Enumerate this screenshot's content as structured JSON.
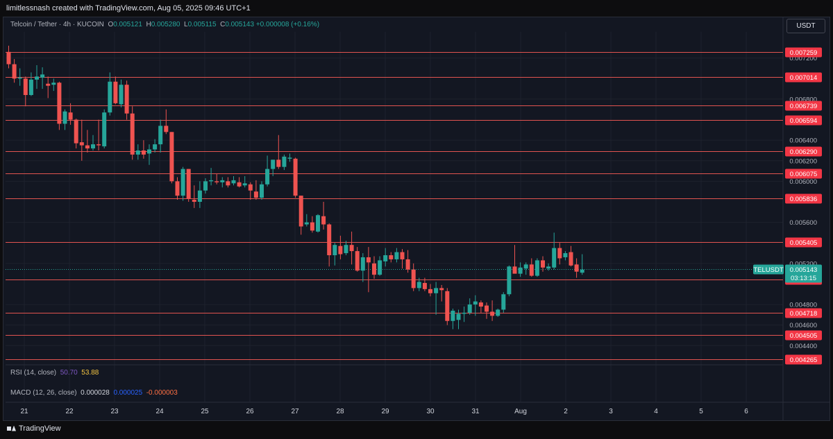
{
  "header": {
    "attribution": "limitlessnash created with TradingView.com, Aug 05, 2025 09:46 UTC+1"
  },
  "legend": {
    "symbol": "Telcoin / Tether · 4h · KUCOIN",
    "open_label": "O",
    "open": "0.005121",
    "high_label": "H",
    "high": "0.005280",
    "low_label": "L",
    "low": "0.005115",
    "close_label": "C",
    "close": "0.005143",
    "change": "+0.000008 (+0.16%)"
  },
  "currency_button": "USDT",
  "indicators": {
    "rsi": {
      "label": "RSI (14, close)",
      "v1": "50.70",
      "v2": "53.88"
    },
    "macd": {
      "label": "MACD (12, 26, close)",
      "v1": "0.000028",
      "v2": "0.000025",
      "v3": "-0.000003"
    }
  },
  "footer": {
    "brand": "TradingView"
  },
  "colors": {
    "up": "#26a69a",
    "down": "#ef5350",
    "level_line": "#e25450",
    "level_badge": "#f23645",
    "background": "#131722",
    "price_tag": "#26a69a"
  },
  "chart_data": {
    "type": "candlestick",
    "ylim": [
      0.00424,
      0.00736
    ],
    "y_ticks": [
      "0.007200",
      "0.006800",
      "0.006400",
      "0.006200",
      "0.006000",
      "0.005600",
      "0.005200",
      "0.004800",
      "0.004600",
      "0.004400"
    ],
    "y_tick_values": [
      0.0072,
      0.0068,
      0.0064,
      0.0062,
      0.006,
      0.0056,
      0.0052,
      0.0048,
      0.0046,
      0.0044
    ],
    "x_ticks": [
      "21",
      "22",
      "23",
      "24",
      "25",
      "26",
      "27",
      "28",
      "29",
      "30",
      "31",
      "Aug",
      "2",
      "3",
      "4",
      "5",
      "6"
    ],
    "horizontal_levels": [
      "0.007259",
      "0.007014",
      "0.006739",
      "0.006594",
      "0.006290",
      "0.006075",
      "0.005836",
      "0.005405",
      "0.005045",
      "0.004718",
      "0.004505",
      "0.004265"
    ],
    "horizontal_level_values": [
      0.007259,
      0.007014,
      0.006739,
      0.006594,
      0.00629,
      0.006075,
      0.005836,
      0.005405,
      0.005045,
      0.004718,
      0.004505,
      0.004265
    ],
    "current_price": {
      "symbol": "TELUSDT",
      "value": "0.005143",
      "countdown": "03:13:15",
      "numeric": 0.005143
    },
    "candles": [
      [
        0.00726,
        0.00732,
        0.0071,
        0.00714
      ],
      [
        0.00714,
        0.00719,
        0.00696,
        0.007
      ],
      [
        0.007,
        0.0071,
        0.00693,
        0.00701
      ],
      [
        0.007,
        0.00702,
        0.00673,
        0.00684
      ],
      [
        0.00684,
        0.00706,
        0.00683,
        0.00699
      ],
      [
        0.00699,
        0.00713,
        0.0069,
        0.00702
      ],
      [
        0.00701,
        0.00711,
        0.0069,
        0.00704
      ],
      [
        0.00695,
        0.00702,
        0.00681,
        0.00693
      ],
      [
        0.00694,
        0.007,
        0.00688,
        0.00696
      ],
      [
        0.00696,
        0.00697,
        0.0065,
        0.00656
      ],
      [
        0.00656,
        0.0067,
        0.0065,
        0.00668
      ],
      [
        0.00667,
        0.00676,
        0.00655,
        0.0066
      ],
      [
        0.0066,
        0.00661,
        0.00632,
        0.00637
      ],
      [
        0.00638,
        0.0066,
        0.0062,
        0.00635
      ],
      [
        0.00635,
        0.0065,
        0.00628,
        0.00632
      ],
      [
        0.00632,
        0.00645,
        0.0063,
        0.00636
      ],
      [
        0.00636,
        0.0066,
        0.0063,
        0.00635
      ],
      [
        0.00634,
        0.0067,
        0.00632,
        0.00667
      ],
      [
        0.00667,
        0.00706,
        0.00664,
        0.00697
      ],
      [
        0.00697,
        0.00702,
        0.00675,
        0.00676
      ],
      [
        0.00675,
        0.00699,
        0.00672,
        0.00694
      ],
      [
        0.00694,
        0.00698,
        0.0066,
        0.00666
      ],
      [
        0.00666,
        0.00673,
        0.00621,
        0.00626
      ],
      [
        0.00626,
        0.00636,
        0.00621,
        0.0063
      ],
      [
        0.0063,
        0.0064,
        0.00622,
        0.00626
      ],
      [
        0.00627,
        0.00636,
        0.00616,
        0.00631
      ],
      [
        0.00631,
        0.00641,
        0.00628,
        0.00636
      ],
      [
        0.00636,
        0.0066,
        0.00628,
        0.00654
      ],
      [
        0.00654,
        0.0067,
        0.00646,
        0.00648
      ],
      [
        0.00648,
        0.00648,
        0.00598,
        0.006
      ],
      [
        0.006,
        0.00604,
        0.00582,
        0.00586
      ],
      [
        0.00586,
        0.00614,
        0.00581,
        0.00612
      ],
      [
        0.00612,
        0.00612,
        0.0058,
        0.00583
      ],
      [
        0.00582,
        0.00596,
        0.00574,
        0.0058
      ],
      [
        0.0058,
        0.006,
        0.00574,
        0.00591
      ],
      [
        0.00591,
        0.00603,
        0.00588,
        0.006
      ],
      [
        0.006,
        0.00613,
        0.00596,
        0.00601
      ],
      [
        0.006,
        0.00607,
        0.00597,
        0.00599
      ],
      [
        0.00599,
        0.00604,
        0.00594,
        0.00601
      ],
      [
        0.006,
        0.00604,
        0.00594,
        0.00596
      ],
      [
        0.00598,
        0.00605,
        0.00596,
        0.00601
      ],
      [
        0.00599,
        0.00604,
        0.00594,
        0.00595
      ],
      [
        0.00596,
        0.00605,
        0.00594,
        0.00598
      ],
      [
        0.00597,
        0.00599,
        0.00582,
        0.00591
      ],
      [
        0.0059,
        0.00601,
        0.00582,
        0.00584
      ],
      [
        0.00584,
        0.006,
        0.00582,
        0.00597
      ],
      [
        0.00597,
        0.00625,
        0.00595,
        0.00612
      ],
      [
        0.00612,
        0.00621,
        0.00605,
        0.00621
      ],
      [
        0.00621,
        0.00645,
        0.00612,
        0.00614
      ],
      [
        0.00614,
        0.00626,
        0.00611,
        0.00624
      ],
      [
        0.00622,
        0.00627,
        0.00619,
        0.00623
      ],
      [
        0.00622,
        0.00623,
        0.00584,
        0.00586
      ],
      [
        0.00586,
        0.00586,
        0.00548,
        0.00556
      ],
      [
        0.00558,
        0.00568,
        0.00556,
        0.0056
      ],
      [
        0.0056,
        0.00566,
        0.0055,
        0.00552
      ],
      [
        0.00551,
        0.00568,
        0.0055,
        0.00567
      ],
      [
        0.00566,
        0.0058,
        0.00553,
        0.00558
      ],
      [
        0.00558,
        0.00559,
        0.00517,
        0.00528
      ],
      [
        0.00528,
        0.0054,
        0.00518,
        0.00538
      ],
      [
        0.00537,
        0.00547,
        0.00524,
        0.00529
      ],
      [
        0.0053,
        0.00542,
        0.00528,
        0.00538
      ],
      [
        0.00538,
        0.00551,
        0.00519,
        0.00532
      ],
      [
        0.00532,
        0.00536,
        0.00512,
        0.00513
      ],
      [
        0.00513,
        0.0053,
        0.00502,
        0.00526
      ],
      [
        0.00526,
        0.00536,
        0.00492,
        0.00521
      ],
      [
        0.0052,
        0.00527,
        0.00505,
        0.00509
      ],
      [
        0.00509,
        0.00527,
        0.00508,
        0.00523
      ],
      [
        0.00522,
        0.00535,
        0.00517,
        0.00528
      ],
      [
        0.00528,
        0.00531,
        0.00521,
        0.00524
      ],
      [
        0.00524,
        0.00535,
        0.00521,
        0.00531
      ],
      [
        0.00531,
        0.00534,
        0.00515,
        0.00524
      ],
      [
        0.00524,
        0.00533,
        0.00511,
        0.00514
      ],
      [
        0.00514,
        0.0052,
        0.00493,
        0.00496
      ],
      [
        0.00496,
        0.00506,
        0.00493,
        0.00502
      ],
      [
        0.00501,
        0.00506,
        0.00493,
        0.00495
      ],
      [
        0.00495,
        0.005,
        0.00488,
        0.00491
      ],
      [
        0.00491,
        0.00502,
        0.0047,
        0.00496
      ],
      [
        0.00496,
        0.00499,
        0.00483,
        0.00494
      ],
      [
        0.00493,
        0.00496,
        0.0046,
        0.00464
      ],
      [
        0.00464,
        0.00476,
        0.00456,
        0.00474
      ],
      [
        0.00465,
        0.00475,
        0.00456,
        0.00471
      ],
      [
        0.00471,
        0.00478,
        0.00463,
        0.00472
      ],
      [
        0.00472,
        0.00486,
        0.0047,
        0.0048
      ],
      [
        0.0048,
        0.00489,
        0.00469,
        0.00483
      ],
      [
        0.00482,
        0.00484,
        0.00472,
        0.00478
      ],
      [
        0.00479,
        0.00482,
        0.00466,
        0.00473
      ],
      [
        0.00473,
        0.00484,
        0.00464,
        0.00469
      ],
      [
        0.00469,
        0.00476,
        0.00468,
        0.00475
      ],
      [
        0.00475,
        0.00492,
        0.00472,
        0.0049
      ],
      [
        0.0049,
        0.00518,
        0.00488,
        0.00517
      ],
      [
        0.00517,
        0.00538,
        0.00512,
        0.0051
      ],
      [
        0.0051,
        0.00521,
        0.00507,
        0.00516
      ],
      [
        0.00515,
        0.00521,
        0.00509,
        0.00519
      ],
      [
        0.00519,
        0.00525,
        0.00507,
        0.00508
      ],
      [
        0.00508,
        0.00525,
        0.00507,
        0.00523
      ],
      [
        0.00523,
        0.00527,
        0.00512,
        0.00516
      ],
      [
        0.00515,
        0.0052,
        0.00513,
        0.00517
      ],
      [
        0.00516,
        0.0055,
        0.00514,
        0.00535
      ],
      [
        0.00535,
        0.0054,
        0.00519,
        0.00525
      ],
      [
        0.00526,
        0.00532,
        0.00523,
        0.0053
      ],
      [
        0.00531,
        0.00537,
        0.00517,
        0.00518
      ],
      [
        0.00519,
        0.00525,
        0.00506,
        0.00512
      ],
      [
        0.00511,
        0.00529,
        0.00509,
        0.00514
      ]
    ]
  }
}
